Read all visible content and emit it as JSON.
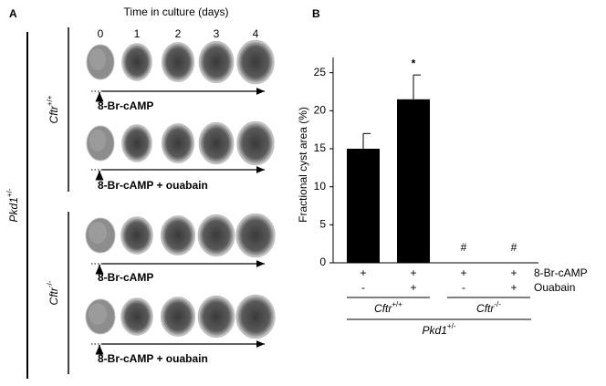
{
  "panel_a": {
    "label": "A",
    "title": "Time in culture (days)",
    "days": [
      "0",
      "1",
      "2",
      "3",
      "4"
    ],
    "outer_group": {
      "name": "Pkd1",
      "sup": "+/-"
    },
    "groups": [
      {
        "name": "Cftr",
        "sup": "+/+",
        "rows": [
          "8-Br-cAMP",
          "8-Br-cAMP + ouabain"
        ]
      },
      {
        "name": "Cftr",
        "sup": "-/-",
        "rows": [
          "8-Br-cAMP",
          "8-Br-cAMP + ouabain"
        ]
      }
    ]
  },
  "chart_data": {
    "type": "bar",
    "panel_label": "B",
    "y_label": "Fractional cyst area (%)",
    "categories": [
      null,
      null,
      null,
      null
    ],
    "values": [
      15,
      21.5,
      0,
      0
    ],
    "errors": [
      2,
      3.2,
      null,
      null
    ],
    "markers": [
      null,
      "*",
      "#",
      "#"
    ],
    "color": "#000000",
    "ylim": [
      0,
      27
    ],
    "yticks": [
      0,
      5,
      10,
      15,
      20,
      25
    ],
    "treatments": [
      {
        "name": "8-Br-cAMP",
        "signs": [
          "+",
          "+",
          "+",
          "+"
        ]
      },
      {
        "name": "Ouabain",
        "signs": [
          "-",
          "+",
          "-",
          "+"
        ]
      }
    ],
    "groups": [
      {
        "name": "Cftr",
        "sup": "+/+"
      },
      {
        "name": "Cftr",
        "sup": "-/-"
      }
    ],
    "outer_group": {
      "name": "Pkd1",
      "sup": "+/-"
    }
  }
}
